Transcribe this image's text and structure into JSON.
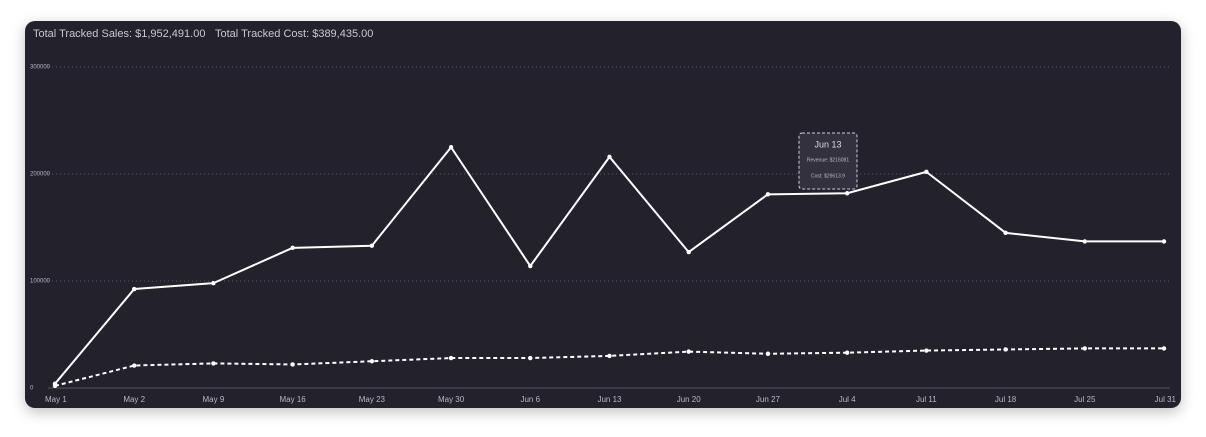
{
  "header": {
    "sales": "Total Tracked Sales: $1,952,491.00",
    "cost": "Total Tracked Cost: $389,435.00"
  },
  "chart_data": {
    "type": "line",
    "categories": [
      "May 1",
      "May 2",
      "May 9",
      "May 16",
      "May 23",
      "May 30",
      "Jun 6",
      "Jun 13",
      "Jun 20",
      "Jun 27",
      "Jul 4",
      "Jul 11",
      "Jul 18",
      "Jul 25",
      "Jul 31"
    ],
    "series": [
      {
        "color": "#ffffff",
        "line_style": "solid",
        "values": [
          4000,
          92500,
          98000,
          131000,
          133000,
          225000,
          114000,
          216000,
          127000,
          181000,
          182000,
          202000,
          145000,
          137000,
          137000
        ]
      },
      {
        "color": "#ffffff",
        "line_style": "dashed",
        "values": [
          2000,
          21000,
          23000,
          22000,
          25000,
          28000,
          28000,
          30000,
          34000,
          32000,
          33000,
          35000,
          36000,
          37000,
          37000
        ]
      }
    ],
    "ylim": [
      0,
      300000
    ],
    "yticks": [
      0,
      100000,
      200000,
      300000
    ],
    "grid": true,
    "tooltip": {
      "title": "Jun 13",
      "lines": [
        "Revenue: $216081",
        "Cost: $29613.9"
      ]
    }
  }
}
